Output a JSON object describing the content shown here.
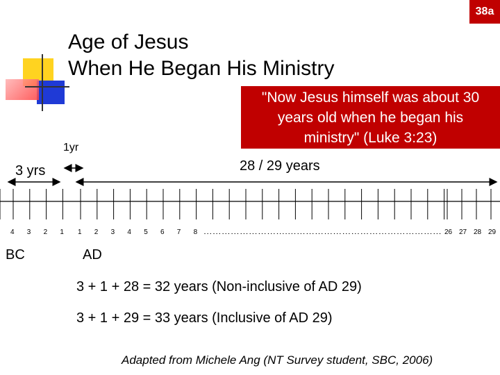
{
  "badge": "38a",
  "title": {
    "line1": "Age of Jesus",
    "line2": "When He Began His Ministry"
  },
  "quote": "\"Now Jesus himself was about 30 years old when he began his ministry\" (Luke 3:23)",
  "labels": {
    "one_yr": "1yr",
    "three_yrs": "3 yrs",
    "years_28_29": "28 / 29 years",
    "bc": "BC",
    "ad": "AD"
  },
  "timeline": {
    "bc_ticks": [
      "4",
      "3",
      "2",
      "1"
    ],
    "ad_ticks": [
      "1",
      "2",
      "3",
      "4",
      "5",
      "6",
      "7",
      "8"
    ],
    "ellipsis": "……………………….……………………………………………",
    "end_ticks": [
      "26",
      "27",
      "28",
      "29"
    ]
  },
  "equations": {
    "eq1": "3 + 1 + 28 = 32 years (Non-inclusive of AD 29)",
    "eq2": "3 + 1 + 29 = 33 years (Inclusive of AD 29)"
  },
  "credit": "Adapted from Michele Ang (NT Survey student, SBC, 2006)",
  "colors": {
    "badge": "#c00000",
    "quote_bg": "#c00000",
    "deco_yellow": "#ffd320",
    "deco_blue": "#1f3ad6",
    "deco_red": "#ff4040"
  }
}
